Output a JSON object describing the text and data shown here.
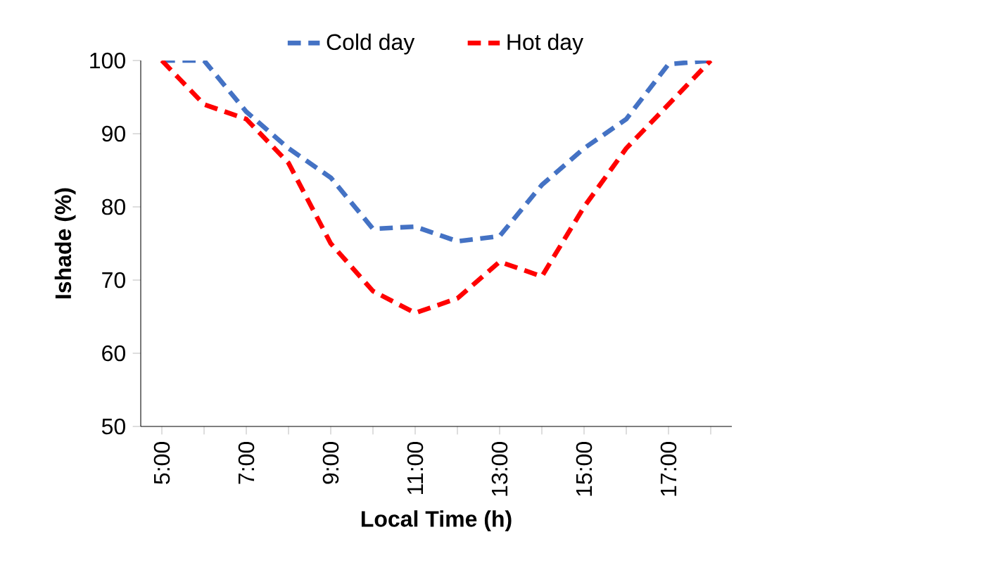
{
  "chart_data": {
    "type": "line",
    "xlabel": "Local Time (h)",
    "ylabel": "Ishade (%)",
    "categories": [
      "5:00",
      null,
      "7:00",
      null,
      "9:00",
      null,
      "11:00",
      null,
      "13:00",
      null,
      "15:00",
      null,
      "17:00",
      null
    ],
    "series": [
      {
        "name": "Cold day",
        "color": "#4472c4",
        "values": [
          100,
          100,
          93,
          88,
          84,
          77,
          77.3,
          75.3,
          76,
          83,
          88,
          92,
          99.5,
          100
        ]
      },
      {
        "name": "Hot day",
        "color": "#ff0000",
        "values": [
          100,
          94,
          92,
          86,
          75,
          68.5,
          65.5,
          67.5,
          72.5,
          70.5,
          80,
          88,
          94,
          100
        ]
      }
    ],
    "ylim": [
      50,
      100
    ],
    "yticks": [
      50,
      60,
      70,
      80,
      90,
      100
    ],
    "grid": false,
    "legend": "top",
    "marker": "none",
    "line_style": "dashed"
  }
}
